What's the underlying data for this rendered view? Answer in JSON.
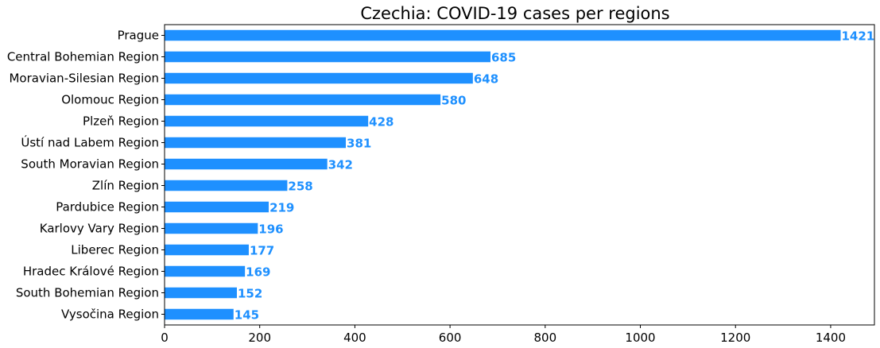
{
  "chart_data": {
    "type": "bar",
    "orientation": "horizontal",
    "title": "Czechia: COVID-19 cases per regions",
    "xlabel": "",
    "ylabel": "",
    "categories": [
      "Prague",
      "Central Bohemian Region",
      "Moravian-Silesian Region",
      "Olomouc Region",
      "Plzeň Region",
      "Ústí nad Labem Region",
      "South Moravian Region",
      "Zlín Region",
      "Pardubice Region",
      "Karlovy Vary Region",
      "Liberec Region",
      "Hradec Králové Region",
      "South Bohemian Region",
      "Vysočina Region"
    ],
    "values": [
      1421,
      685,
      648,
      580,
      428,
      381,
      342,
      258,
      219,
      196,
      177,
      169,
      152,
      145
    ],
    "data_labels": [
      "1421",
      "685",
      "648",
      "580",
      "428",
      "381",
      "342",
      "258",
      "219",
      "196",
      "177",
      "169",
      "152",
      "145"
    ],
    "xlim": [
      0,
      1492
    ],
    "xticks": [
      0,
      200,
      400,
      600,
      800,
      1000,
      1200,
      1400
    ],
    "xtick_labels": [
      "0",
      "200",
      "400",
      "600",
      "800",
      "1000",
      "1200",
      "1400"
    ],
    "grid": false,
    "legend": "none",
    "bar_color": "#1E90FF",
    "label_color": "#1E90FF"
  }
}
